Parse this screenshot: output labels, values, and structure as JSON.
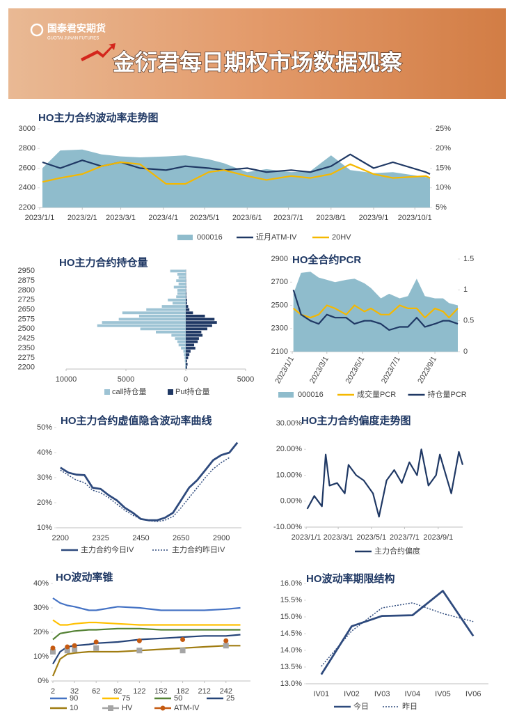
{
  "header": {
    "logo": "国泰君安期货",
    "logo_en": "GUOTAI JUNAN FUTURES",
    "title": "金衍君每日期权市场数据观察"
  },
  "chart_data": [
    {
      "type": "line",
      "title": "HO主力合约波动率走势图",
      "x": [
        "2023/1/3",
        "2023/1/16",
        "2023/2/1",
        "2023/2/15",
        "2023/3/1",
        "2023/3/15",
        "2023/4/3",
        "2023/4/17",
        "2023/5/4",
        "2023/5/15",
        "2023/6/1",
        "2023/6/15",
        "2023/7/3",
        "2023/7/17",
        "2023/8/1",
        "2023/8/15",
        "2023/9/1",
        "2023/9/15",
        "2023/10/9",
        "2023/10/12"
      ],
      "xlim": [
        "2023/1/1",
        "2023/10/12"
      ],
      "xticks": [
        "2023/1/1",
        "2023/2/1",
        "2023/3/1",
        "2023/4/1",
        "2023/5/1",
        "2023/6/1",
        "2023/7/1",
        "2023/8/1",
        "2023/9/1",
        "2023/10/1"
      ],
      "ylim": [
        2200,
        3000
      ],
      "yticks": [
        2200,
        2400,
        2600,
        2800,
        3000
      ],
      "y2lim": [
        5,
        25
      ],
      "y2ticks": [
        {
          "value": 5,
          "label": "5%"
        },
        {
          "value": 10,
          "label": "10%"
        },
        {
          "value": 15,
          "label": "15%"
        },
        {
          "value": 20,
          "label": "20%"
        },
        {
          "value": 25,
          "label": "25%"
        }
      ],
      "series": [
        {
          "name": "000016",
          "type": "area",
          "color": "#8fbccc",
          "values": [
            2600,
            2780,
            2790,
            2740,
            2720,
            2710,
            2720,
            2730,
            2690,
            2650,
            2560,
            2590,
            2560,
            2570,
            2730,
            2580,
            2550,
            2560,
            2510,
            2500
          ]
        },
        {
          "name": "近月ATM-IV",
          "color": "#1f3864",
          "axis": "y2",
          "values": [
            16.5,
            15,
            17,
            15.5,
            16.5,
            15,
            14.5,
            15.5,
            15,
            14.5,
            15,
            14,
            14.5,
            14,
            15.5,
            18.5,
            15,
            16.5,
            14,
            13.5
          ]
        },
        {
          "name": "20HV",
          "color": "#f5b800",
          "axis": "y2",
          "values": [
            11.5,
            12.5,
            13.5,
            15.5,
            16.5,
            16,
            11,
            11,
            14,
            14.5,
            13,
            12,
            13,
            12.5,
            13.5,
            16,
            13.5,
            12.5,
            13,
            12.5
          ]
        }
      ]
    },
    {
      "type": "bar",
      "orientation": "horizontal",
      "title": "HO主力合约持仓量",
      "categories": [
        "2200",
        null,
        null,
        "2275",
        null,
        null,
        "2350",
        null,
        null,
        "2425",
        null,
        null,
        "2500",
        null,
        null,
        "2575",
        null,
        null,
        "2650",
        null,
        null,
        "2725",
        null,
        null,
        "2800",
        null,
        null,
        "2875",
        null,
        null,
        "2950"
      ],
      "xlim": [
        -10000,
        5000
      ],
      "xticks": [
        {
          "value": -10000,
          "label": "10000"
        },
        {
          "value": -5000,
          "label": "5000"
        },
        0,
        5000
      ],
      "series": [
        {
          "name": "call持仓量",
          "color": "#9dc3d4",
          "values": [
            -50,
            -50,
            -80,
            -100,
            -150,
            -200,
            -400,
            -600,
            -700,
            -900,
            -1200,
            -2500,
            -3800,
            -7400,
            -7000,
            -5600,
            -3900,
            -5300,
            -3300,
            -2000,
            -1100,
            -1500,
            -800,
            -700,
            -700,
            -1000,
            -600,
            -800,
            -600,
            -700,
            -1300
          ]
        },
        {
          "name": "Put持仓量",
          "color": "#1f3864",
          "values": [
            100,
            150,
            100,
            200,
            300,
            400,
            800,
            700,
            1000,
            1100,
            1400,
            1300,
            1800,
            2200,
            2600,
            2400,
            1600,
            600,
            300,
            200,
            100,
            100,
            50,
            50,
            30,
            30,
            20,
            20,
            10,
            10,
            10
          ]
        }
      ]
    },
    {
      "type": "line",
      "title": "HO全合约PCR",
      "x": [
        "2023/1/3",
        "2023/1/16",
        "2023/2/1",
        "2023/2/15",
        "2023/3/1",
        "2023/3/15",
        "2023/4/3",
        "2023/4/17",
        "2023/5/4",
        "2023/5/15",
        "2023/6/1",
        "2023/6/15",
        "2023/7/3",
        "2023/7/17",
        "2023/8/1",
        "2023/8/15",
        "2023/9/1",
        "2023/9/15",
        "2023/9/25",
        "2023/10/10"
      ],
      "xlim": [
        "2023/1/1",
        "2023/10/10"
      ],
      "xticks": [
        "2023/1/1",
        "2023/3/1",
        "2023/5/1",
        "2023/7/1",
        "2023/9/1"
      ],
      "ylim": [
        2100,
        2900
      ],
      "yticks": [
        2100,
        2300,
        2500,
        2700,
        2900
      ],
      "y2lim": [
        0,
        1.5
      ],
      "y2ticks": [
        0,
        0.5,
        1,
        1.5
      ],
      "series": [
        {
          "name": "000016",
          "type": "area",
          "color": "#8fbccc",
          "values": [
            2600,
            2780,
            2790,
            2740,
            2720,
            2700,
            2720,
            2730,
            2690,
            2650,
            2560,
            2600,
            2560,
            2580,
            2730,
            2580,
            2560,
            2560,
            2520,
            2500
          ]
        },
        {
          "name": "成交量PCR",
          "color": "#f5b800",
          "axis": "y2",
          "values": [
            0.7,
            0.6,
            0.55,
            0.6,
            0.75,
            0.7,
            0.6,
            0.75,
            0.65,
            0.7,
            0.6,
            0.6,
            0.75,
            0.7,
            0.7,
            0.55,
            0.7,
            0.65,
            0.55,
            0.7
          ]
        },
        {
          "name": "持仓量PCR",
          "color": "#1f3864",
          "axis": "y2",
          "values": [
            1.0,
            0.6,
            0.5,
            0.45,
            0.6,
            0.55,
            0.55,
            0.45,
            0.5,
            0.5,
            0.45,
            0.35,
            0.4,
            0.4,
            0.55,
            0.4,
            0.45,
            0.5,
            0.5,
            0.45
          ]
        }
      ]
    },
    {
      "type": "line",
      "title": "HO主力合约虚值隐含波动率曲线",
      "categories": [
        "2200",
        null,
        null,
        null,
        null,
        "2325",
        null,
        null,
        null,
        null,
        "2450",
        null,
        null,
        null,
        null,
        "2650",
        null,
        null,
        null,
        null,
        "2900",
        null,
        null
      ],
      "ylim": [
        10,
        50
      ],
      "yticks": [
        {
          "value": 10,
          "label": "10%"
        },
        {
          "value": 20,
          "label": "20%"
        },
        {
          "value": 30,
          "label": "30%"
        },
        {
          "value": 40,
          "label": "40%"
        },
        {
          "value": 50,
          "label": "50%"
        }
      ],
      "series": [
        {
          "name": "主力合约今日IV",
          "color": "#2e4a7d",
          "values": [
            34,
            32,
            31.2,
            31,
            26,
            25.5,
            23,
            21,
            18,
            16,
            13.5,
            13,
            13,
            14,
            16,
            21,
            26,
            29,
            33,
            37,
            39,
            40,
            44
          ]
        },
        {
          "name": "主力合约昨日IV",
          "color": "#2e4a7d",
          "line_style": "dotted",
          "values": [
            33,
            31,
            29,
            28,
            25,
            24,
            22,
            19.5,
            17,
            15,
            13.5,
            12.8,
            12.5,
            13,
            14.5,
            18,
            22,
            26,
            30,
            33.5,
            36,
            38,
            null
          ]
        }
      ]
    },
    {
      "type": "line",
      "title": "HO主力合约偏度走势图",
      "x": [
        "2023/1/3",
        "2023/1/16",
        "2023/1/30",
        "2023/2/6",
        "2023/2/13",
        "2023/2/27",
        "2023/3/13",
        "2023/3/20",
        "2023/4/3",
        "2023/4/17",
        "2023/5/4",
        "2023/5/15",
        "2023/5/29",
        "2023/6/12",
        "2023/6/26",
        "2023/7/10",
        "2023/7/24",
        "2023/8/1",
        "2023/8/14",
        "2023/8/28",
        "2023/9/4",
        "2023/9/18",
        "2023/9/25",
        "2023/10/9",
        "2023/10/16"
      ],
      "xlim": [
        "2023/1/1",
        "2023/10/16"
      ],
      "xticks": [
        "2023/1/1",
        "2023/3/1",
        "2023/5/1",
        "2023/7/1",
        "2023/9/1"
      ],
      "ylim": [
        -10,
        30
      ],
      "yticks": [
        {
          "value": -10,
          "label": "-10.00%"
        },
        {
          "value": 0,
          "label": "0.00%"
        },
        {
          "value": 10,
          "label": "10.00%"
        },
        {
          "value": 20,
          "label": "20.00%"
        },
        {
          "value": 30,
          "label": "30.00%"
        }
      ],
      "series": [
        {
          "name": "主力合约偏度",
          "color": "#1f3864",
          "values": [
            -3,
            2,
            -2,
            18,
            6,
            7,
            3,
            14,
            10,
            8,
            3,
            -6,
            8,
            12,
            7,
            15,
            10,
            20,
            6,
            10,
            18,
            8,
            3,
            19,
            14
          ]
        }
      ]
    },
    {
      "type": "line",
      "title": "HO波动率锥",
      "x": [
        2,
        12,
        22,
        32,
        52,
        62,
        92,
        122,
        152,
        182,
        212,
        242,
        262
      ],
      "xlim": [
        2,
        276
      ],
      "xticks": [
        2,
        32,
        62,
        92,
        122,
        152,
        182,
        212,
        242
      ],
      "ylim": [
        0,
        40
      ],
      "yticks": [
        {
          "value": 0,
          "label": "0%"
        },
        {
          "value": 10,
          "label": "10%"
        },
        {
          "value": 20,
          "label": "20%"
        },
        {
          "value": 30,
          "label": "30%"
        },
        {
          "value": 40,
          "label": "40%"
        }
      ],
      "series": [
        {
          "name": "90",
          "color": "#4472c4",
          "values": [
            34,
            32,
            31,
            30.5,
            29,
            29,
            30.5,
            30,
            29,
            29,
            29,
            29.5,
            30
          ]
        },
        {
          "name": "75",
          "color": "#ffc000",
          "values": [
            25,
            23,
            23,
            23.5,
            24,
            24,
            23.5,
            23,
            23,
            23,
            23,
            23,
            23
          ]
        },
        {
          "name": "50",
          "color": "#548235",
          "values": [
            17,
            19.5,
            20,
            20.5,
            21,
            21,
            21.5,
            21.5,
            21,
            21,
            21,
            21,
            21
          ]
        },
        {
          "name": "25",
          "color": "#264478",
          "values": [
            7,
            12,
            14,
            14.5,
            15,
            15.5,
            16,
            17,
            17.5,
            18,
            18.5,
            18.5,
            19
          ]
        },
        {
          "name": "10",
          "color": "#a07c11",
          "values": [
            2,
            9,
            11,
            11.5,
            12,
            12,
            12,
            12.5,
            13,
            13.5,
            14,
            14.5,
            14.5
          ]
        },
        {
          "name": "HV",
          "color": "#a5a5a5",
          "marker": "square",
          "values": [
            12,
            null,
            12.5,
            13,
            null,
            13.5,
            null,
            12.5,
            null,
            12.5,
            null,
            14.5,
            null
          ]
        },
        {
          "name": "ATM-IV",
          "color": "#c55a11",
          "marker": "circle",
          "values": [
            13.5,
            null,
            14,
            14.5,
            null,
            16,
            null,
            16.5,
            null,
            17,
            null,
            16.5,
            null
          ]
        }
      ]
    },
    {
      "type": "line",
      "title": "HO波动率期限结构",
      "categories": [
        "IV01",
        "IV02",
        "IV03",
        "IV04",
        "IV05",
        "IV06"
      ],
      "ylim": [
        13,
        16
      ],
      "yticks": [
        {
          "value": 13,
          "label": "13.0%"
        },
        {
          "value": 13.5,
          "label": "13.5%"
        },
        {
          "value": 14,
          "label": "14.0%"
        },
        {
          "value": 14.5,
          "label": "14.5%"
        },
        {
          "value": 15,
          "label": "15.0%"
        },
        {
          "value": 15.5,
          "label": "15.5%"
        },
        {
          "value": 16,
          "label": "16.0%"
        }
      ],
      "series": [
        {
          "name": "今日",
          "color": "#2e4a7d",
          "values": [
            13.28,
            14.72,
            15.03,
            15.05,
            15.78,
            14.43
          ]
        },
        {
          "name": "昨日",
          "color": "#2e4a7d",
          "line_style": "dotted",
          "values": [
            13.52,
            14.58,
            15.27,
            15.42,
            15.1,
            14.86
          ]
        }
      ]
    }
  ]
}
